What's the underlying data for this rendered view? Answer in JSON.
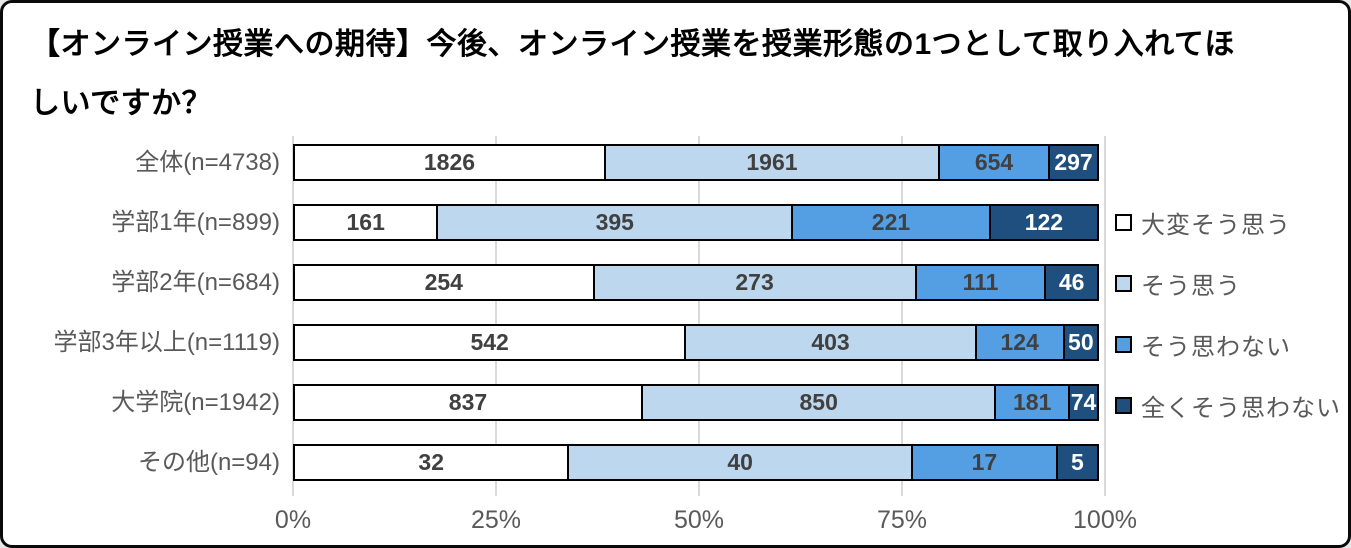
{
  "title": {
    "line1": "【オンライン授業への期待】今後、オンライン授業を授業形態の1つとして取り入れてほ",
    "line2": "しいですか？"
  },
  "colors": {
    "category_label": "#595959",
    "axis_label": "#595959",
    "gridline": "#d9d9d9",
    "bar_border": "#000000"
  },
  "chart_data": {
    "type": "bar",
    "subtype": "horizontal-100%-stacked",
    "title": "【オンライン授業への期待】今後、オンライン授業を授業形態の1つとして取り入れてほしいですか？",
    "categories": [
      "全体(n=4738)",
      "学部1年(n=899)",
      "学部2年(n=684)",
      "学部3年以上(n=1119)",
      "大学院(n=1942)",
      "その他(n=94)"
    ],
    "series": [
      {
        "name": "大変そう思う",
        "color": "#ffffff",
        "label_color": "#404040",
        "values": [
          1826,
          161,
          254,
          542,
          837,
          32
        ]
      },
      {
        "name": "そう思う",
        "color": "#bdd7ee",
        "label_color": "#404040",
        "values": [
          1961,
          395,
          273,
          403,
          850,
          40
        ]
      },
      {
        "name": "そう思わない",
        "color": "#549fe3",
        "label_color": "#404040",
        "values": [
          654,
          221,
          111,
          124,
          181,
          17
        ]
      },
      {
        "name": "全くそう思わない",
        "color": "#1e4f7e",
        "label_color": "#ffffff",
        "values": [
          297,
          122,
          46,
          50,
          74,
          5
        ]
      }
    ],
    "x_ticks": [
      "0%",
      "25%",
      "50%",
      "75%",
      "100%"
    ],
    "xlim": [
      0,
      100
    ],
    "grid": "vertical",
    "legend_position": "right"
  }
}
